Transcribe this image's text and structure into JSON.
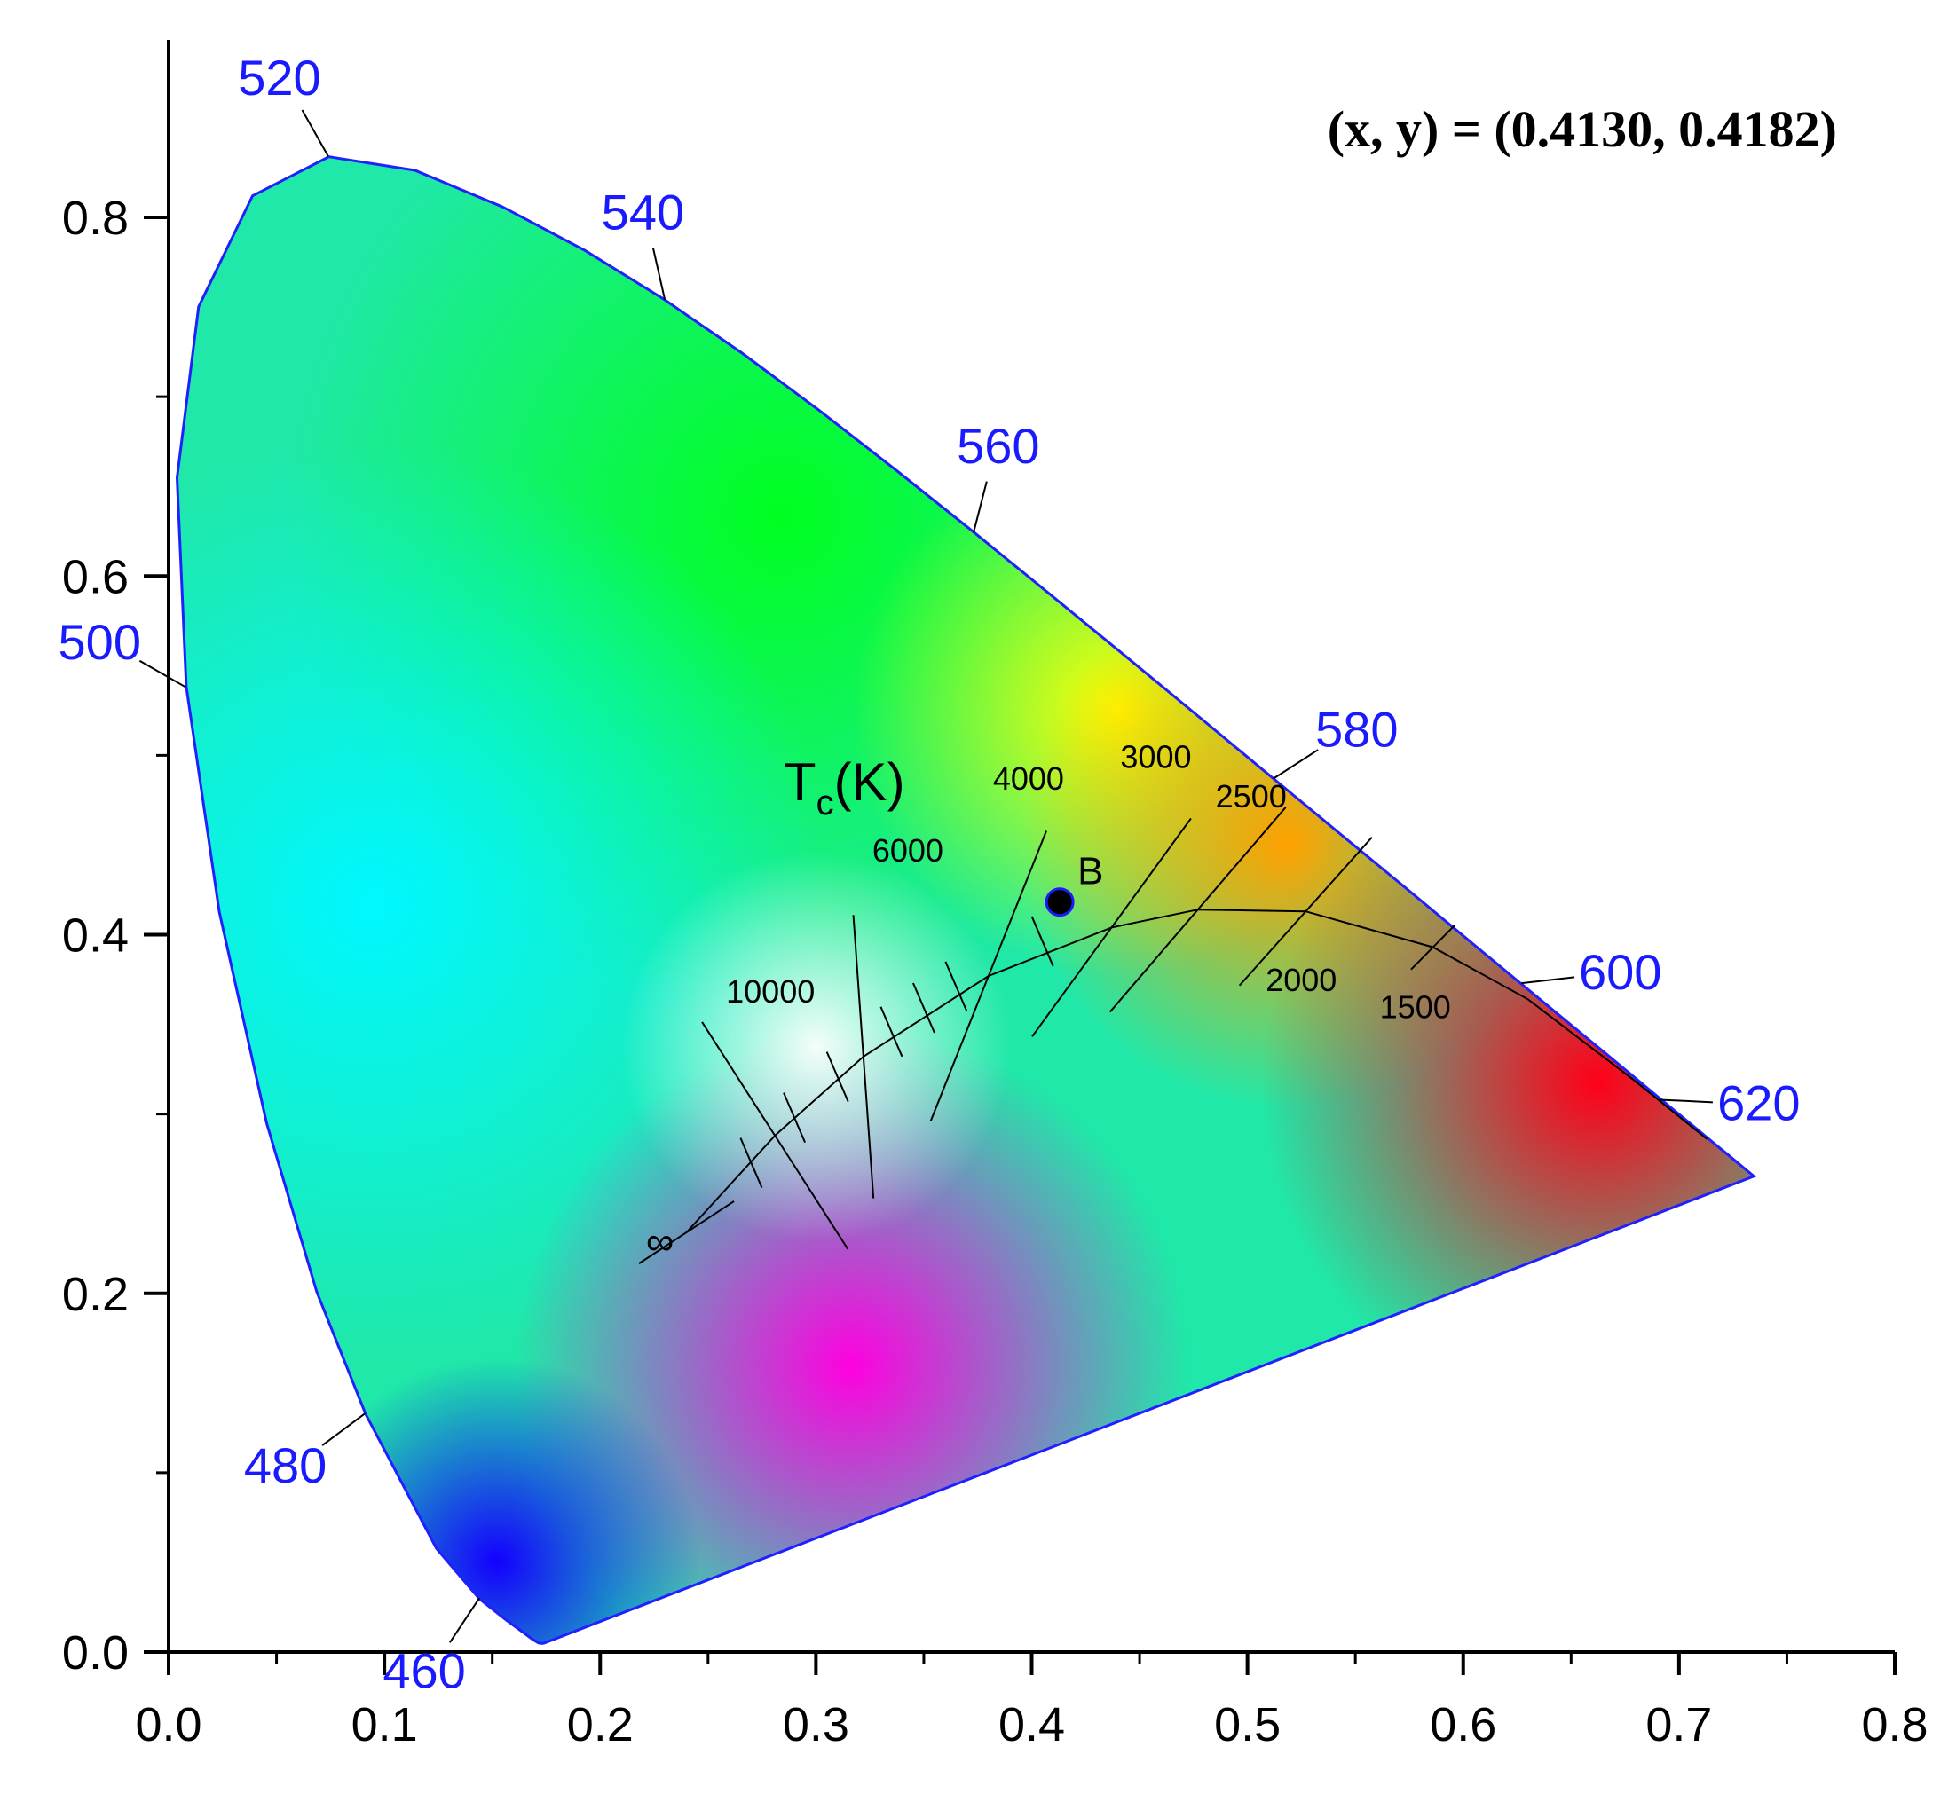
{
  "chart_data": {
    "type": "scatter",
    "title": "",
    "xlabel": "",
    "ylabel": "",
    "xlim": [
      0.0,
      0.8
    ],
    "ylim": [
      0.0,
      0.8
    ],
    "x_ticks": [
      "0.0",
      "0.1",
      "0.2",
      "0.3",
      "0.4",
      "0.5",
      "0.6",
      "0.7",
      "0.8"
    ],
    "y_ticks": [
      "0.0",
      "0.2",
      "0.4",
      "0.6",
      "0.8"
    ],
    "annotation": "(x, y) = (0.4130, 0.4182)",
    "point": {
      "label": "B",
      "x": 0.413,
      "y": 0.4182
    },
    "spectral_locus_labels": [
      {
        "wavelength": "460",
        "x": 0.144,
        "y": 0.03
      },
      {
        "wavelength": "480",
        "x": 0.091,
        "y": 0.133
      },
      {
        "wavelength": "500",
        "x": 0.008,
        "y": 0.538
      },
      {
        "wavelength": "520",
        "x": 0.074,
        "y": 0.834
      },
      {
        "wavelength": "540",
        "x": 0.23,
        "y": 0.754
      },
      {
        "wavelength": "560",
        "x": 0.373,
        "y": 0.624
      },
      {
        "wavelength": "580",
        "x": 0.512,
        "y": 0.487
      },
      {
        "wavelength": "600",
        "x": 0.627,
        "y": 0.373
      },
      {
        "wavelength": "620",
        "x": 0.691,
        "y": 0.308
      }
    ],
    "planckian_locus_title_main": "T",
    "planckian_locus_title_sub": "c",
    "planckian_locus_title_unit": "(K)",
    "planckian_locus_labels": [
      {
        "label": "∞",
        "x": 0.24,
        "y": 0.234
      },
      {
        "label": "10000",
        "x": 0.281,
        "y": 0.288
      },
      {
        "label": "6000",
        "x": 0.322,
        "y": 0.332
      },
      {
        "label": "4000",
        "x": 0.38,
        "y": 0.377
      },
      {
        "label": "3000",
        "x": 0.437,
        "y": 0.404
      },
      {
        "label": "2500",
        "x": 0.477,
        "y": 0.414
      },
      {
        "label": "2000",
        "x": 0.527,
        "y": 0.413
      },
      {
        "label": "1500",
        "x": 0.586,
        "y": 0.393
      }
    ]
  }
}
